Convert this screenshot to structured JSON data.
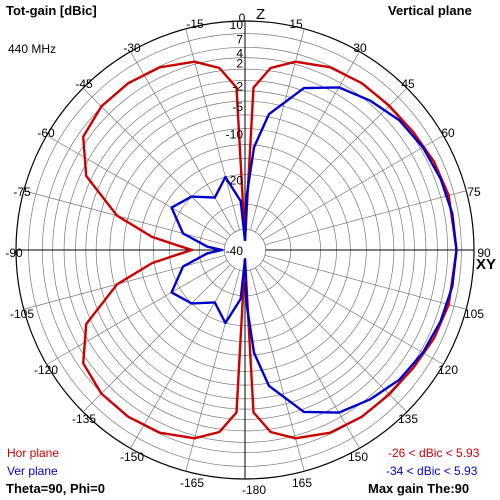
{
  "header": {
    "title": "Tot-gain [dBic]",
    "plane": "Vertical plane",
    "frequency": "440 MHz",
    "z_axis": "Z",
    "xy_axis": "XY"
  },
  "legend": {
    "hor_label": "Hor plane",
    "ver_label": "Ver plane",
    "hor_range": "-26 < dBic < 5.93",
    "ver_range": "-34 < dBic < 5.93",
    "hor_color": "#cc0000",
    "ver_color": "#0000cc"
  },
  "footer": {
    "angles": "Theta=90, Phi=0",
    "max_gain": "Max gain The:90"
  },
  "chart_data": {
    "type": "polar",
    "title": "Tot-gain [dBic]",
    "unit": "dBic",
    "radial_ticks": [
      "10",
      "7",
      "4",
      "2",
      "-2",
      "-5",
      "-10",
      "-20",
      "-40"
    ],
    "angle_ticks": [
      "-15",
      "-30",
      "-45",
      "-60",
      "-75",
      "-90",
      "-105",
      "-120",
      "-135",
      "-150",
      "-165",
      "-180",
      "0",
      "15",
      "30",
      "45",
      "60",
      "75",
      "90",
      "105",
      "120",
      "135",
      "150",
      "165"
    ],
    "grid": true,
    "series": [
      {
        "name": "Hor plane",
        "color": "#cc0000",
        "points": [
          [
            0,
            -40
          ],
          [
            3,
            -3
          ],
          [
            8,
            0.5
          ],
          [
            15,
            2.5
          ],
          [
            25,
            3.8
          ],
          [
            35,
            4.2
          ],
          [
            45,
            4.3
          ],
          [
            55,
            4.6
          ],
          [
            65,
            5.3
          ],
          [
            75,
            5.8
          ],
          [
            90,
            5.93
          ],
          [
            105,
            5.8
          ],
          [
            115,
            5.3
          ],
          [
            125,
            4.6
          ],
          [
            135,
            4.3
          ],
          [
            145,
            4.2
          ],
          [
            155,
            3.8
          ],
          [
            165,
            2.5
          ],
          [
            172,
            0.5
          ],
          [
            177,
            -3
          ],
          [
            180,
            -40
          ],
          [
            183,
            -3
          ],
          [
            188,
            0.5
          ],
          [
            195,
            2.5
          ],
          [
            205,
            3.8
          ],
          [
            215,
            4.2
          ],
          [
            225,
            4.1
          ],
          [
            235,
            3
          ],
          [
            245,
            -1
          ],
          [
            255,
            -8
          ],
          [
            262,
            -16
          ],
          [
            266,
            -22
          ],
          [
            270,
            -26
          ],
          [
            274,
            -22
          ],
          [
            278,
            -16
          ],
          [
            285,
            -8
          ],
          [
            295,
            -1
          ],
          [
            305,
            3
          ],
          [
            315,
            4.1
          ],
          [
            325,
            4.2
          ],
          [
            335,
            3.8
          ],
          [
            345,
            2.5
          ],
          [
            352,
            0.5
          ],
          [
            357,
            -3
          ],
          [
            360,
            -40
          ]
        ]
      },
      {
        "name": "Ver plane",
        "color": "#0000cc",
        "points": [
          [
            0,
            -40
          ],
          [
            2,
            -25
          ],
          [
            5,
            -14
          ],
          [
            10,
            -7
          ],
          [
            20,
            -1.5
          ],
          [
            30,
            1.2
          ],
          [
            40,
            2.5
          ],
          [
            50,
            3.8
          ],
          [
            60,
            4.6
          ],
          [
            70,
            5.2
          ],
          [
            80,
            5.7
          ],
          [
            90,
            5.93
          ],
          [
            100,
            5.7
          ],
          [
            110,
            5.2
          ],
          [
            120,
            4.6
          ],
          [
            130,
            3.8
          ],
          [
            140,
            2.5
          ],
          [
            150,
            1.2
          ],
          [
            160,
            -1.5
          ],
          [
            170,
            -7
          ],
          [
            175,
            -14
          ],
          [
            178,
            -25
          ],
          [
            180,
            -40
          ],
          [
            185,
            -27
          ],
          [
            195,
            -20
          ],
          [
            210,
            -24
          ],
          [
            225,
            -20
          ],
          [
            240,
            -18
          ],
          [
            255,
            -23
          ],
          [
            265,
            -30
          ],
          [
            270,
            -34
          ],
          [
            275,
            -30
          ],
          [
            285,
            -23
          ],
          [
            300,
            -18
          ],
          [
            315,
            -20
          ],
          [
            330,
            -24
          ],
          [
            345,
            -20
          ],
          [
            355,
            -27
          ],
          [
            360,
            -40
          ]
        ]
      }
    ]
  }
}
